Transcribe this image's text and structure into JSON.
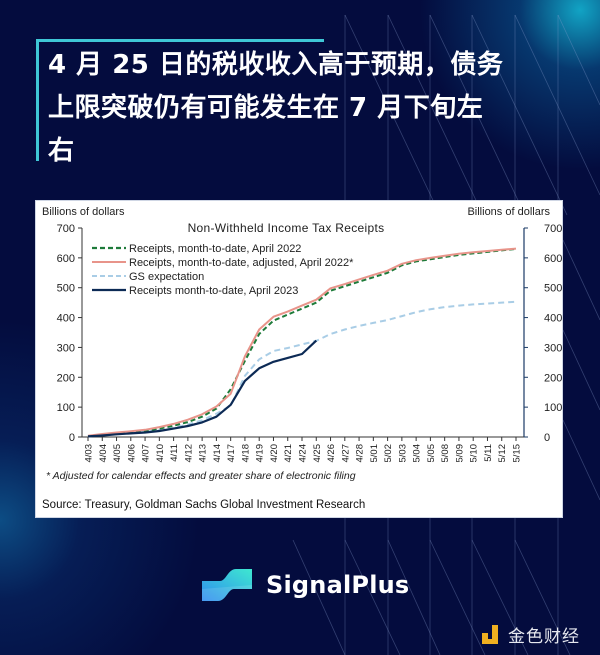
{
  "headline": {
    "lines": [
      "4 月 25 日的税收收入高于预期，债务",
      "上限突破仍有可能发生在 7 月下旬左",
      "右"
    ]
  },
  "chart_card": {
    "left_axis_label": "Billions of dollars",
    "right_axis_label": "Billions of dollars",
    "footnote": "* Adjusted for calendar effects and greater share of electronic filing",
    "source": "Source: Treasury, Goldman Sachs Global Investment Research"
  },
  "chart_data": {
    "type": "line",
    "title": "Non-Withheld Income Tax Receipts",
    "xlabel": "",
    "ylabel": "Billions of dollars",
    "ylim": [
      0,
      700
    ],
    "yticks": [
      0,
      100,
      200,
      300,
      400,
      500,
      600,
      700
    ],
    "grid": false,
    "legend_position": "upper left",
    "categories": [
      "4/03",
      "4/04",
      "4/05",
      "4/06",
      "4/07",
      "4/10",
      "4/11",
      "4/12",
      "4/13",
      "4/14",
      "4/17",
      "4/18",
      "4/19",
      "4/20",
      "4/21",
      "4/24",
      "4/25",
      "4/26",
      "4/27",
      "4/28",
      "5/01",
      "5/02",
      "5/03",
      "5/04",
      "5/05",
      "5/08",
      "5/09",
      "5/10",
      "5/11",
      "5/12",
      "5/15"
    ],
    "series": [
      {
        "name": "Receipts, month-to-date, April 2022",
        "color": "#1e7b3a",
        "style": "dashed",
        "values": [
          3,
          8,
          12,
          16,
          20,
          28,
          38,
          50,
          68,
          95,
          160,
          255,
          345,
          390,
          410,
          430,
          450,
          490,
          505,
          520,
          535,
          550,
          575,
          588,
          595,
          603,
          610,
          615,
          620,
          625,
          630
        ]
      },
      {
        "name": "Receipts, month-to-date, adjusted, April 2022*",
        "color": "#e8948a",
        "style": "solid",
        "values": [
          4,
          10,
          15,
          19,
          24,
          33,
          44,
          58,
          76,
          102,
          145,
          270,
          360,
          403,
          420,
          440,
          460,
          498,
          512,
          528,
          543,
          557,
          580,
          592,
          600,
          607,
          614,
          619,
          623,
          627,
          631
        ]
      },
      {
        "name": "GS expectation",
        "color": "#a9cde6",
        "style": "dashed",
        "values": [
          2,
          6,
          10,
          13,
          17,
          23,
          31,
          42,
          56,
          78,
          105,
          205,
          260,
          288,
          298,
          310,
          322,
          345,
          360,
          372,
          382,
          392,
          405,
          418,
          428,
          435,
          440,
          444,
          447,
          450,
          453
        ]
      },
      {
        "name": "Receipts month-to-date, April 2023",
        "color": "#0c2a55",
        "style": "solid",
        "values": [
          2,
          5,
          9,
          12,
          15,
          20,
          28,
          37,
          49,
          68,
          108,
          188,
          230,
          252,
          265,
          278,
          323
        ]
      }
    ]
  },
  "branding": {
    "logo_name": "SignalPlus",
    "watermark": "金色财经"
  }
}
